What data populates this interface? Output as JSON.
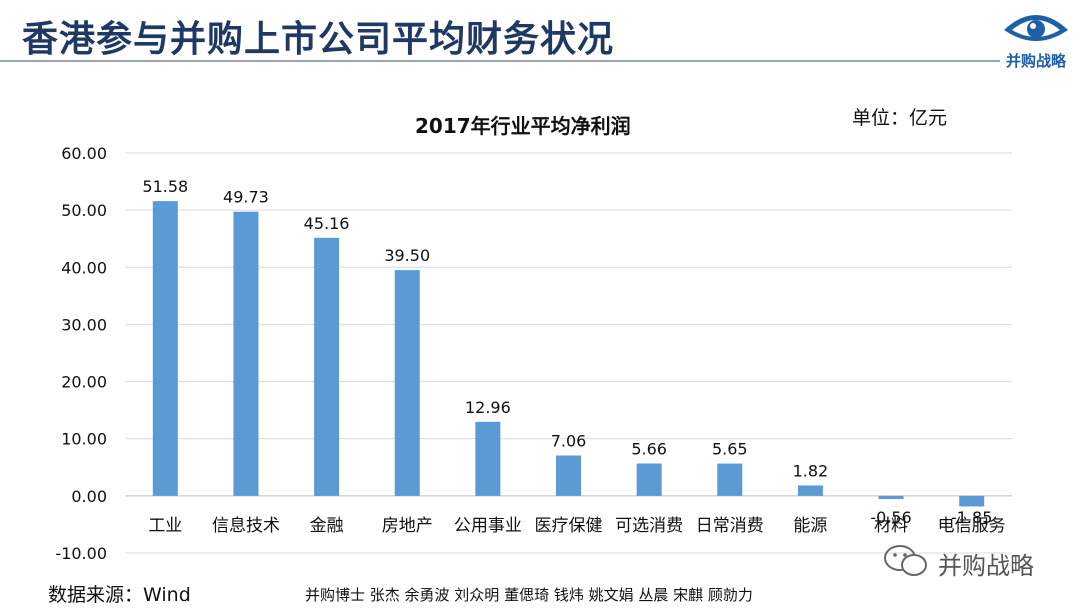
{
  "header": {
    "title": "香港参与并购上市公司平均财务状况"
  },
  "logo": {
    "text": "并购战略",
    "icon": "eye-icon"
  },
  "chart_data": {
    "type": "bar",
    "title": "2017年行业平均净利润",
    "unit": "单位：亿元",
    "categories": [
      "工业",
      "信息技术",
      "金融",
      "房地产",
      "公用事业",
      "医疗保健",
      "可选消费",
      "日常消费",
      "能源",
      "材料",
      "电信服务"
    ],
    "values": [
      51.58,
      49.73,
      45.16,
      39.5,
      12.96,
      7.06,
      5.66,
      5.65,
      1.82,
      -0.56,
      -1.85
    ],
    "data_labels": [
      "51.58",
      "49.73",
      "45.16",
      "39.50",
      "12.96",
      "7.06",
      "5.66",
      "5.65",
      "1.82",
      "-0.56",
      "-1.85"
    ],
    "ylim": [
      -10,
      60
    ],
    "yticks": [
      "-10.00",
      "0.00",
      "10.00",
      "20.00",
      "30.00",
      "40.00",
      "50.00",
      "60.00"
    ],
    "grid": true,
    "bar_color": "#5b9bd5",
    "grid_color": "#d9d9d9"
  },
  "footer": {
    "source": "数据来源：Wind",
    "authors": "并购博士 张杰 余勇波 刘众明 董偲琦 钱炜 姚文娟 丛晨 宋麒 顾勍力"
  },
  "watermark": {
    "text": "并购战略",
    "icon": "wechat-icon"
  }
}
